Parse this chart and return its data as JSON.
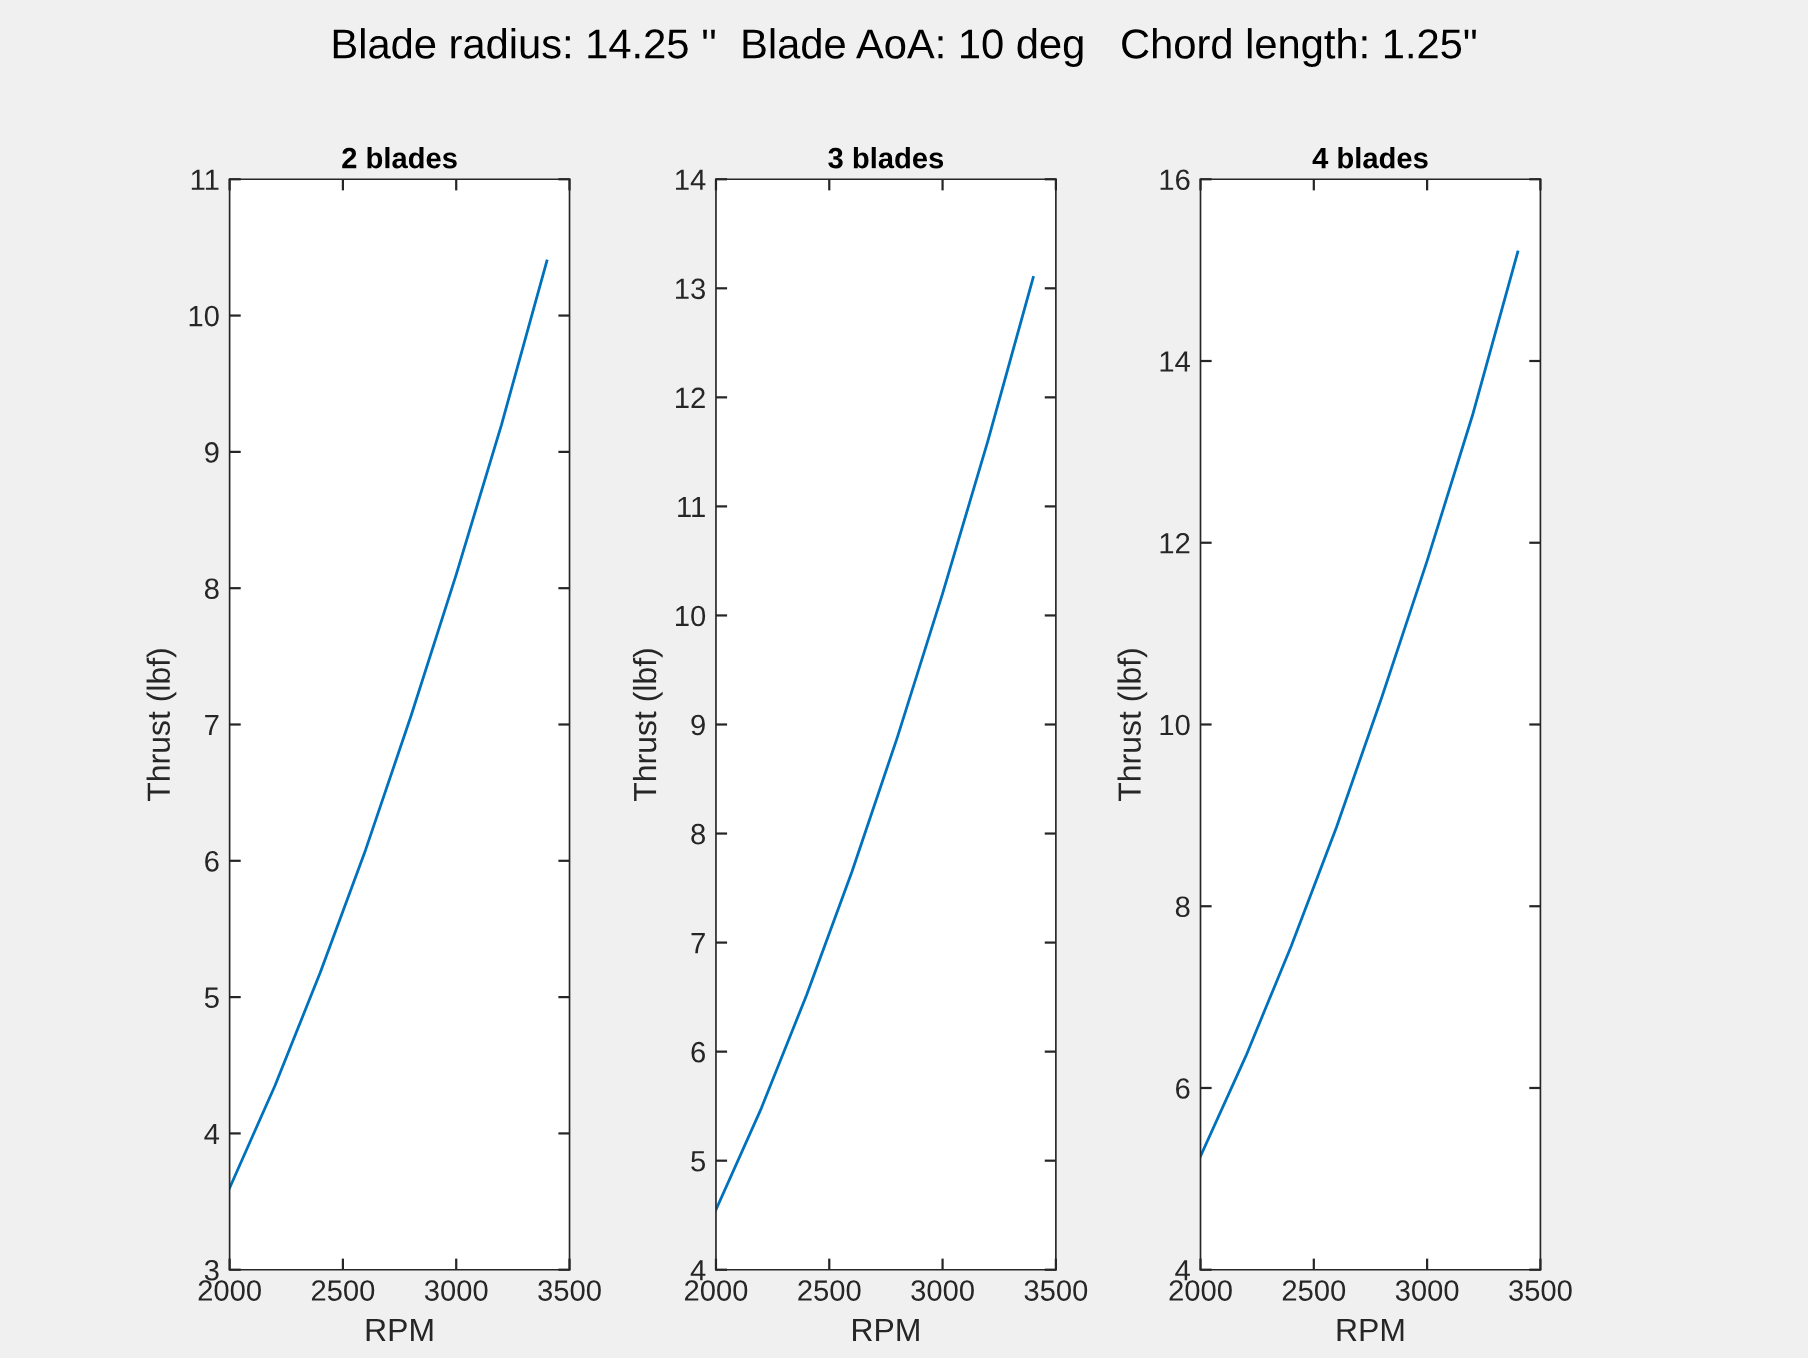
{
  "chart_data": [
    {
      "type": "line",
      "title": "2 blades",
      "annotations": [
        "Blade radius: 14.25 ''  Blade AoA: 10 deg   Chord length: 1.25\""
      ],
      "xlabel": "RPM",
      "ylabel": "Thrust (lbf)",
      "x": [
        2000,
        2200,
        2400,
        2600,
        2800,
        3000,
        3200,
        3400
      ],
      "series": [
        {
          "color": "#0072bd",
          "values": [
            3.6,
            4.35,
            5.18,
            6.08,
            7.06,
            8.1,
            9.2,
            10.4
          ]
        }
      ],
      "xlim": [
        2000,
        3500
      ],
      "xticks": [
        2000,
        2500,
        3000,
        3500
      ],
      "ylim": [
        3,
        11
      ],
      "yticks": [
        3,
        4,
        5,
        6,
        7,
        8,
        9,
        10,
        11
      ],
      "grid": false,
      "legend": false,
      "marker": "none",
      "line_style": "solid"
    },
    {
      "type": "line",
      "title": "3 blades",
      "xlabel": "RPM",
      "ylabel": "Thrust (lbf)",
      "x": [
        2000,
        2200,
        2400,
        2600,
        2800,
        3000,
        3200,
        3400
      ],
      "series": [
        {
          "color": "#0072bd",
          "values": [
            4.55,
            5.48,
            6.52,
            7.65,
            8.88,
            10.2,
            11.6,
            13.1
          ]
        }
      ],
      "xlim": [
        2000,
        3500
      ],
      "xticks": [
        2000,
        2500,
        3000,
        3500
      ],
      "ylim": [
        4,
        14
      ],
      "yticks": [
        4,
        5,
        6,
        7,
        8,
        9,
        10,
        11,
        12,
        13,
        14
      ],
      "grid": false,
      "legend": false,
      "marker": "none",
      "line_style": "solid"
    },
    {
      "type": "line",
      "title": "4 blades",
      "xlabel": "RPM",
      "ylabel": "Thrust (lbf)",
      "x": [
        2000,
        2200,
        2400,
        2600,
        2800,
        3000,
        3200,
        3400
      ],
      "series": [
        {
          "color": "#0072bd",
          "values": [
            5.25,
            6.35,
            7.56,
            8.87,
            10.3,
            11.8,
            13.4,
            15.2
          ]
        }
      ],
      "xlim": [
        2000,
        3500
      ],
      "xticks": [
        2000,
        2500,
        3000,
        3500
      ],
      "ylim": [
        4,
        16
      ],
      "yticks": [
        4,
        6,
        8,
        10,
        12,
        14,
        16
      ],
      "grid": false,
      "legend": false,
      "marker": "none",
      "line_style": "solid"
    }
  ]
}
